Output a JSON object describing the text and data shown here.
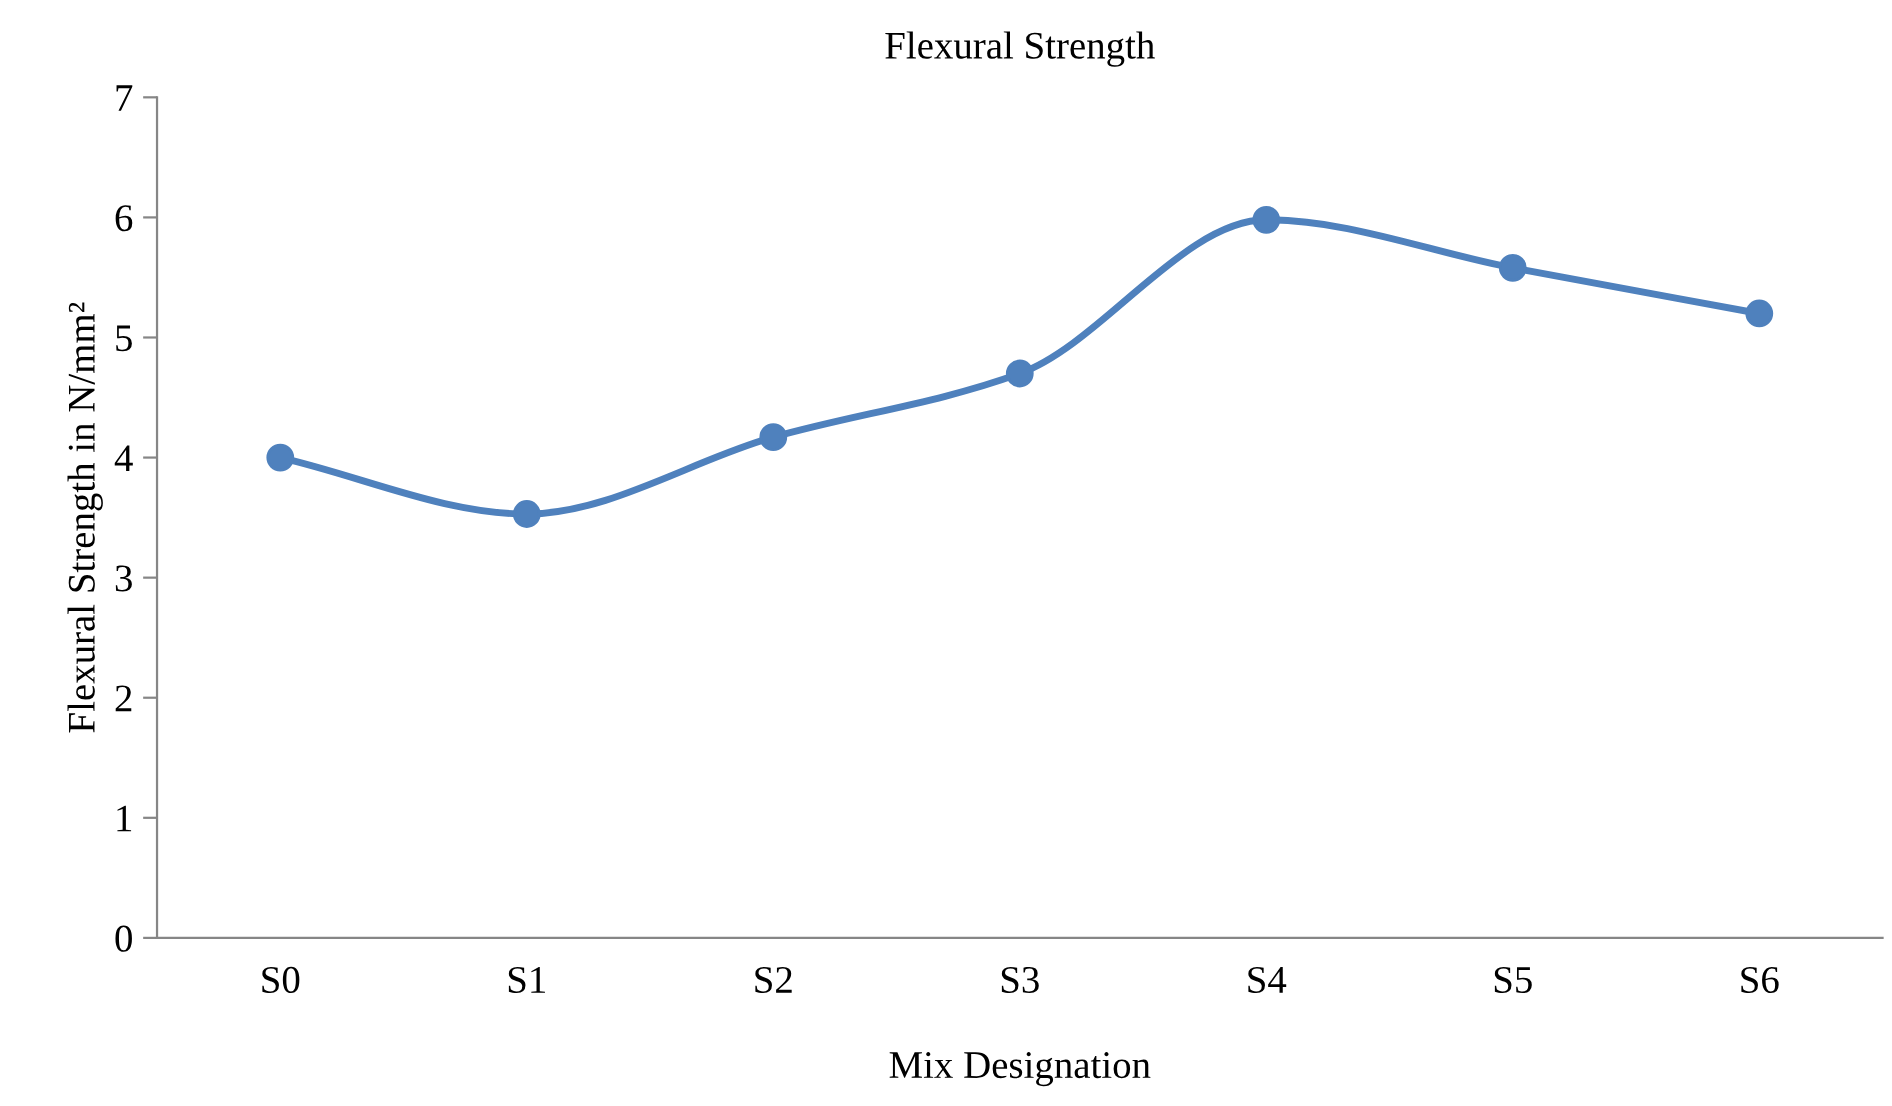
{
  "chart_data": {
    "type": "line",
    "title": "Flexural Strength",
    "xlabel": "Mix Designation",
    "ylabel": "Flexural Strength in N/mm²",
    "categories": [
      "S0",
      "S1",
      "S2",
      "S3",
      "S4",
      "S5",
      "S6"
    ],
    "series": [
      {
        "color": "#4f81bd",
        "values": [
          4.0,
          3.53,
          4.17,
          4.7,
          5.98,
          5.58,
          5.2
        ]
      }
    ],
    "ylim": [
      0,
      7
    ],
    "yticks": [
      0,
      1,
      2,
      3,
      4,
      5,
      6,
      7
    ],
    "grid": false,
    "legend": false,
    "marker": "circle",
    "line_style": "solid"
  }
}
